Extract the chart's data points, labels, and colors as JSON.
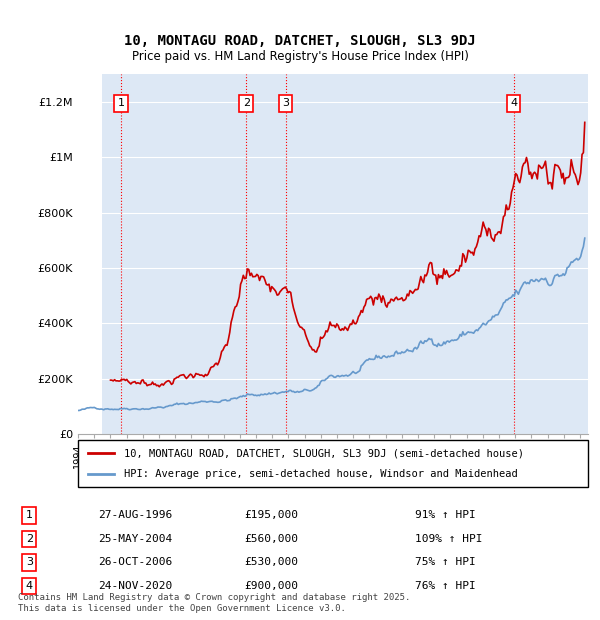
{
  "title1": "10, MONTAGU ROAD, DATCHET, SLOUGH, SL3 9DJ",
  "title2": "Price paid vs. HM Land Registry's House Price Index (HPI)",
  "ylabel_ticks": [
    "£0",
    "£200K",
    "£400K",
    "£600K",
    "£800K",
    "£1M",
    "£1.2M"
  ],
  "ylim": [
    0,
    1300000
  ],
  "xlim_start": 1994.0,
  "xlim_end": 2025.5,
  "legend_line1": "10, MONTAGU ROAD, DATCHET, SLOUGH, SL3 9DJ (semi-detached house)",
  "legend_line2": "HPI: Average price, semi-detached house, Windsor and Maidenhead",
  "sale_color": "#cc0000",
  "hpi_color": "#6699cc",
  "transactions": [
    {
      "num": 1,
      "year": 1996.65,
      "price": 195000,
      "date": "27-AUG-1996",
      "pct": "91%",
      "dir": "↑"
    },
    {
      "num": 2,
      "year": 2004.4,
      "price": 560000,
      "date": "25-MAY-2004",
      "pct": "109%",
      "dir": "↑"
    },
    {
      "num": 3,
      "year": 2006.82,
      "price": 530000,
      "date": "26-OCT-2006",
      "pct": "75%",
      "dir": "↑"
    },
    {
      "num": 4,
      "year": 2020.9,
      "price": 900000,
      "date": "24-NOV-2020",
      "pct": "76%",
      "dir": "↑"
    }
  ],
  "footnote": "Contains HM Land Registry data © Crown copyright and database right 2025.\nThis data is licensed under the Open Government Licence v3.0.",
  "background_hatch_color": "#d0d8e8",
  "plot_bg_color": "#dde8f5",
  "hatch_end_year": 1995.5
}
